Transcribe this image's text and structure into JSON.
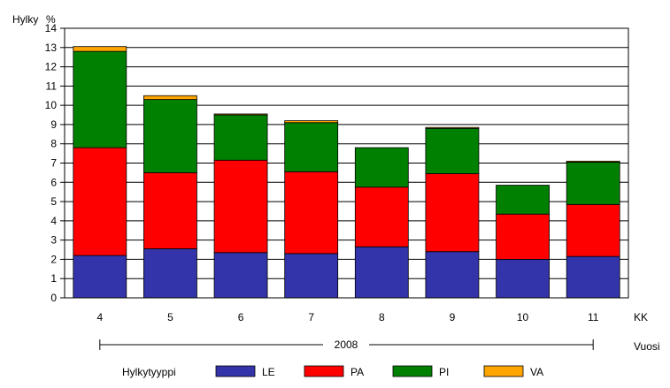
{
  "chart_data": {
    "type": "bar",
    "stacked": true,
    "ylabel": "Hylky",
    "yunit": "%",
    "xlabel": "KK",
    "xlabel2": "Vuosi",
    "year": "2008",
    "legend_title": "Hylkytyyppi",
    "legend_position": "bottom",
    "ylim": [
      0,
      14
    ],
    "yticks": [
      "0",
      "1",
      "2",
      "3",
      "4",
      "5",
      "6",
      "7",
      "8",
      "9",
      "10",
      "11",
      "12",
      "13",
      "14"
    ],
    "grid": true,
    "categories": [
      "4",
      "5",
      "6",
      "7",
      "8",
      "9",
      "10",
      "11"
    ],
    "series": [
      {
        "name": "LE",
        "color": "#3333aa",
        "values": [
          2.2,
          2.55,
          2.35,
          2.3,
          2.65,
          2.4,
          2.0,
          2.15
        ]
      },
      {
        "name": "PA",
        "color": "#ff0000",
        "values": [
          5.6,
          3.95,
          4.8,
          4.25,
          3.1,
          4.05,
          2.35,
          2.7
        ]
      },
      {
        "name": "PI",
        "color": "#008000",
        "values": [
          5.0,
          3.8,
          2.35,
          2.55,
          2.05,
          2.35,
          1.5,
          2.2
        ]
      },
      {
        "name": "VA",
        "color": "#ffa500",
        "values": [
          0.25,
          0.2,
          0.05,
          0.1,
          0.0,
          0.05,
          0.0,
          0.05
        ]
      }
    ]
  }
}
